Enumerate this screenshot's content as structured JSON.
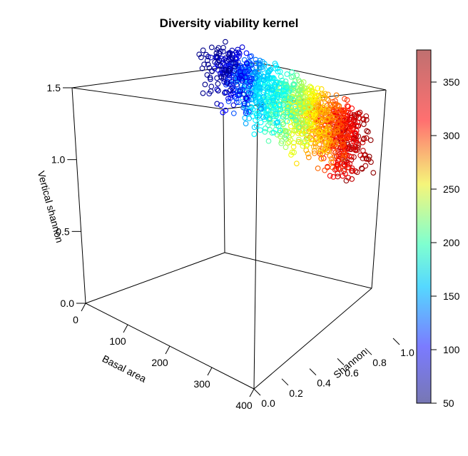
{
  "chart_data": {
    "type": "scatter",
    "title": "Diversity viability kernel",
    "xlabel": "Basal area",
    "ylabel": "Shannon",
    "zlabel": "Vertical shannon",
    "xlim": [
      0,
      400
    ],
    "ylim": [
      0,
      1.0
    ],
    "zlim": [
      0,
      1.5
    ],
    "x_ticks": [
      "0",
      "100",
      "200",
      "300",
      "400"
    ],
    "y_ticks": [
      "0.0",
      "0.2",
      "0.4",
      "0.6",
      "0.8",
      "1.0"
    ],
    "z_ticks": [
      "0.0",
      "0.5",
      "1.0",
      "1.5"
    ],
    "colorbar": {
      "min": 50,
      "max": 380,
      "ticks": [
        "50",
        "100",
        "150",
        "200",
        "250",
        "300",
        "350"
      ],
      "colormap": [
        "#00008b",
        "#0000ff",
        "#00bfff",
        "#00ffff",
        "#7fff7f",
        "#ffff00",
        "#ff7f00",
        "#ff0000",
        "#8b0000"
      ]
    },
    "point_cloud": {
      "basal_area_range": [
        30,
        380
      ],
      "shannon_range": [
        0.78,
        1.0
      ],
      "vertical_shannon_range": [
        1.05,
        1.55
      ],
      "marker": "open-circle"
    }
  }
}
